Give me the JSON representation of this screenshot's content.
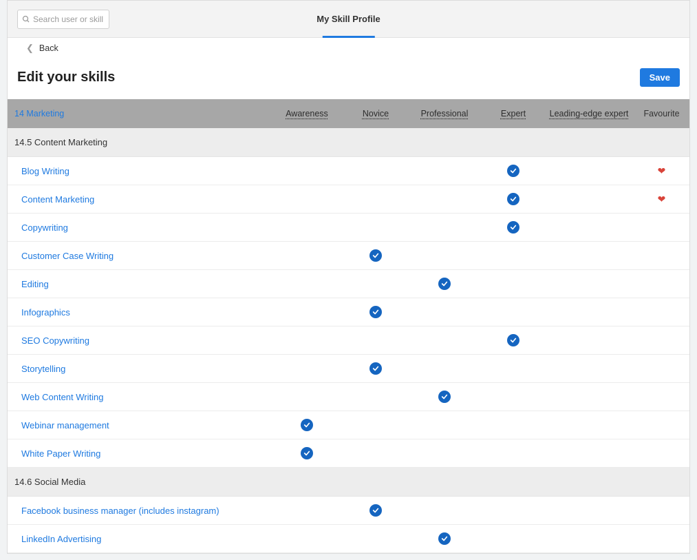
{
  "colors": {
    "accent": "#1f7ae0",
    "check_bg": "#1565c0",
    "heart": "#d9443a",
    "header_bg": "#a7a7a7",
    "section_bg": "#ededed",
    "page_bg": "#f1f3f4",
    "row_border": "#ececec"
  },
  "search": {
    "placeholder": "Search user or skill"
  },
  "top_tab": {
    "label": "My Skill Profile"
  },
  "back": {
    "label": "Back"
  },
  "page": {
    "title": "Edit your skills"
  },
  "buttons": {
    "save": "Save"
  },
  "levels": {
    "category": "14 Marketing",
    "awareness": "Awareness",
    "novice": "Novice",
    "professional": "Professional",
    "expert": "Expert",
    "leading": "Leading-edge expert",
    "favourite": "Favourite"
  },
  "sections": [
    {
      "title": "14.5 Content Marketing",
      "skills": [
        {
          "name": "Blog Writing",
          "level": "expert",
          "favourite": true
        },
        {
          "name": "Content Marketing",
          "level": "expert",
          "favourite": true
        },
        {
          "name": "Copywriting",
          "level": "expert",
          "favourite": false
        },
        {
          "name": "Customer Case Writing",
          "level": "novice",
          "favourite": false
        },
        {
          "name": "Editing",
          "level": "professional",
          "favourite": false
        },
        {
          "name": "Infographics",
          "level": "novice",
          "favourite": false
        },
        {
          "name": "SEO Copywriting",
          "level": "expert",
          "favourite": false
        },
        {
          "name": "Storytelling",
          "level": "novice",
          "favourite": false
        },
        {
          "name": "Web Content Writing",
          "level": "professional",
          "favourite": false
        },
        {
          "name": "Webinar management",
          "level": "awareness",
          "favourite": false
        },
        {
          "name": "White Paper Writing",
          "level": "awareness",
          "favourite": false
        }
      ]
    },
    {
      "title": "14.6 Social Media",
      "skills": [
        {
          "name": "Facebook business manager (includes instagram)",
          "level": "novice",
          "favourite": false
        },
        {
          "name": "LinkedIn Advertising",
          "level": "professional",
          "favourite": false
        }
      ]
    }
  ]
}
